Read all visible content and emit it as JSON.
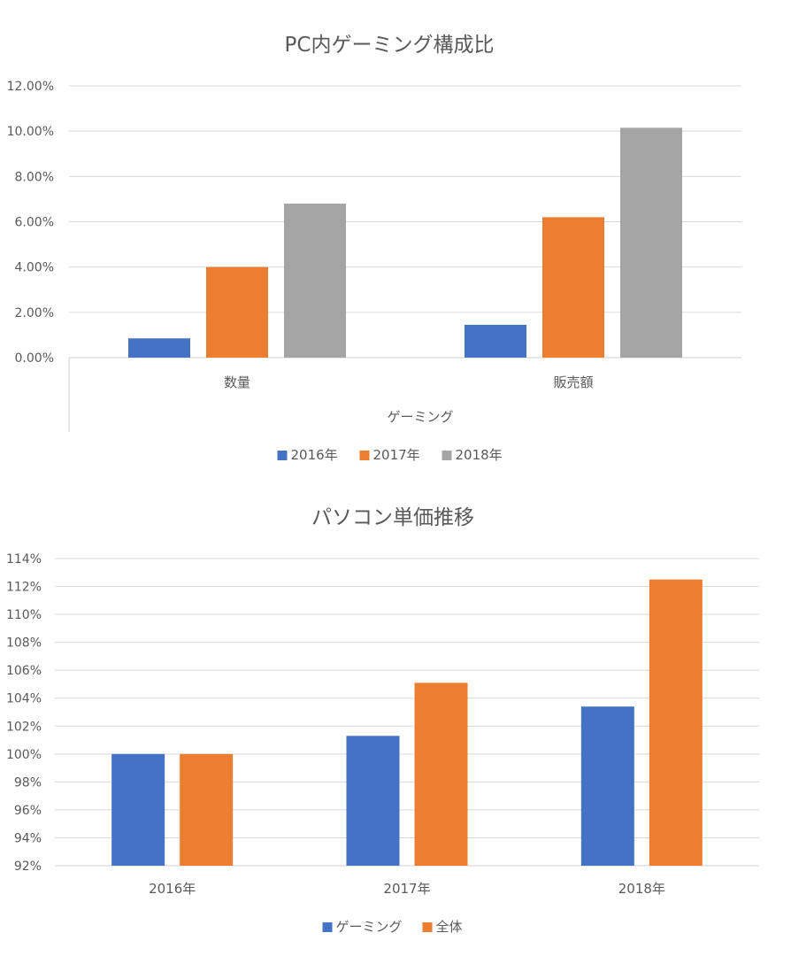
{
  "chart_data": [
    {
      "type": "bar",
      "title": "PC内ゲーミング構成比",
      "group_label": "ゲーミング",
      "categories": [
        "数量",
        "販売額"
      ],
      "series": [
        {
          "name": "2016年",
          "color": "#4472C4",
          "values": [
            0.85,
            1.45
          ]
        },
        {
          "name": "2017年",
          "color": "#ED7D31",
          "values": [
            4.0,
            6.2
          ]
        },
        {
          "name": "2018年",
          "color": "#A5A5A5",
          "values": [
            6.8,
            10.15
          ]
        }
      ],
      "ylim": [
        0,
        12
      ],
      "yticks": [
        "0.00%",
        "2.00%",
        "4.00%",
        "6.00%",
        "8.00%",
        "10.00%",
        "12.00%"
      ],
      "grid": true,
      "legend": "bottom"
    },
    {
      "type": "bar",
      "title": "パソコン単価推移",
      "categories": [
        "2016年",
        "2017年",
        "2018年"
      ],
      "series": [
        {
          "name": "ゲーミング",
          "color": "#4472C4",
          "values": [
            100,
            101.3,
            103.4
          ]
        },
        {
          "name": "全体",
          "color": "#ED7D31",
          "values": [
            100,
            105.1,
            112.5
          ]
        }
      ],
      "ylim": [
        92,
        114
      ],
      "yticks": [
        "92%",
        "94%",
        "96%",
        "98%",
        "100%",
        "102%",
        "104%",
        "106%",
        "108%",
        "110%",
        "112%",
        "114%"
      ],
      "grid": true,
      "legend": "bottom"
    }
  ]
}
